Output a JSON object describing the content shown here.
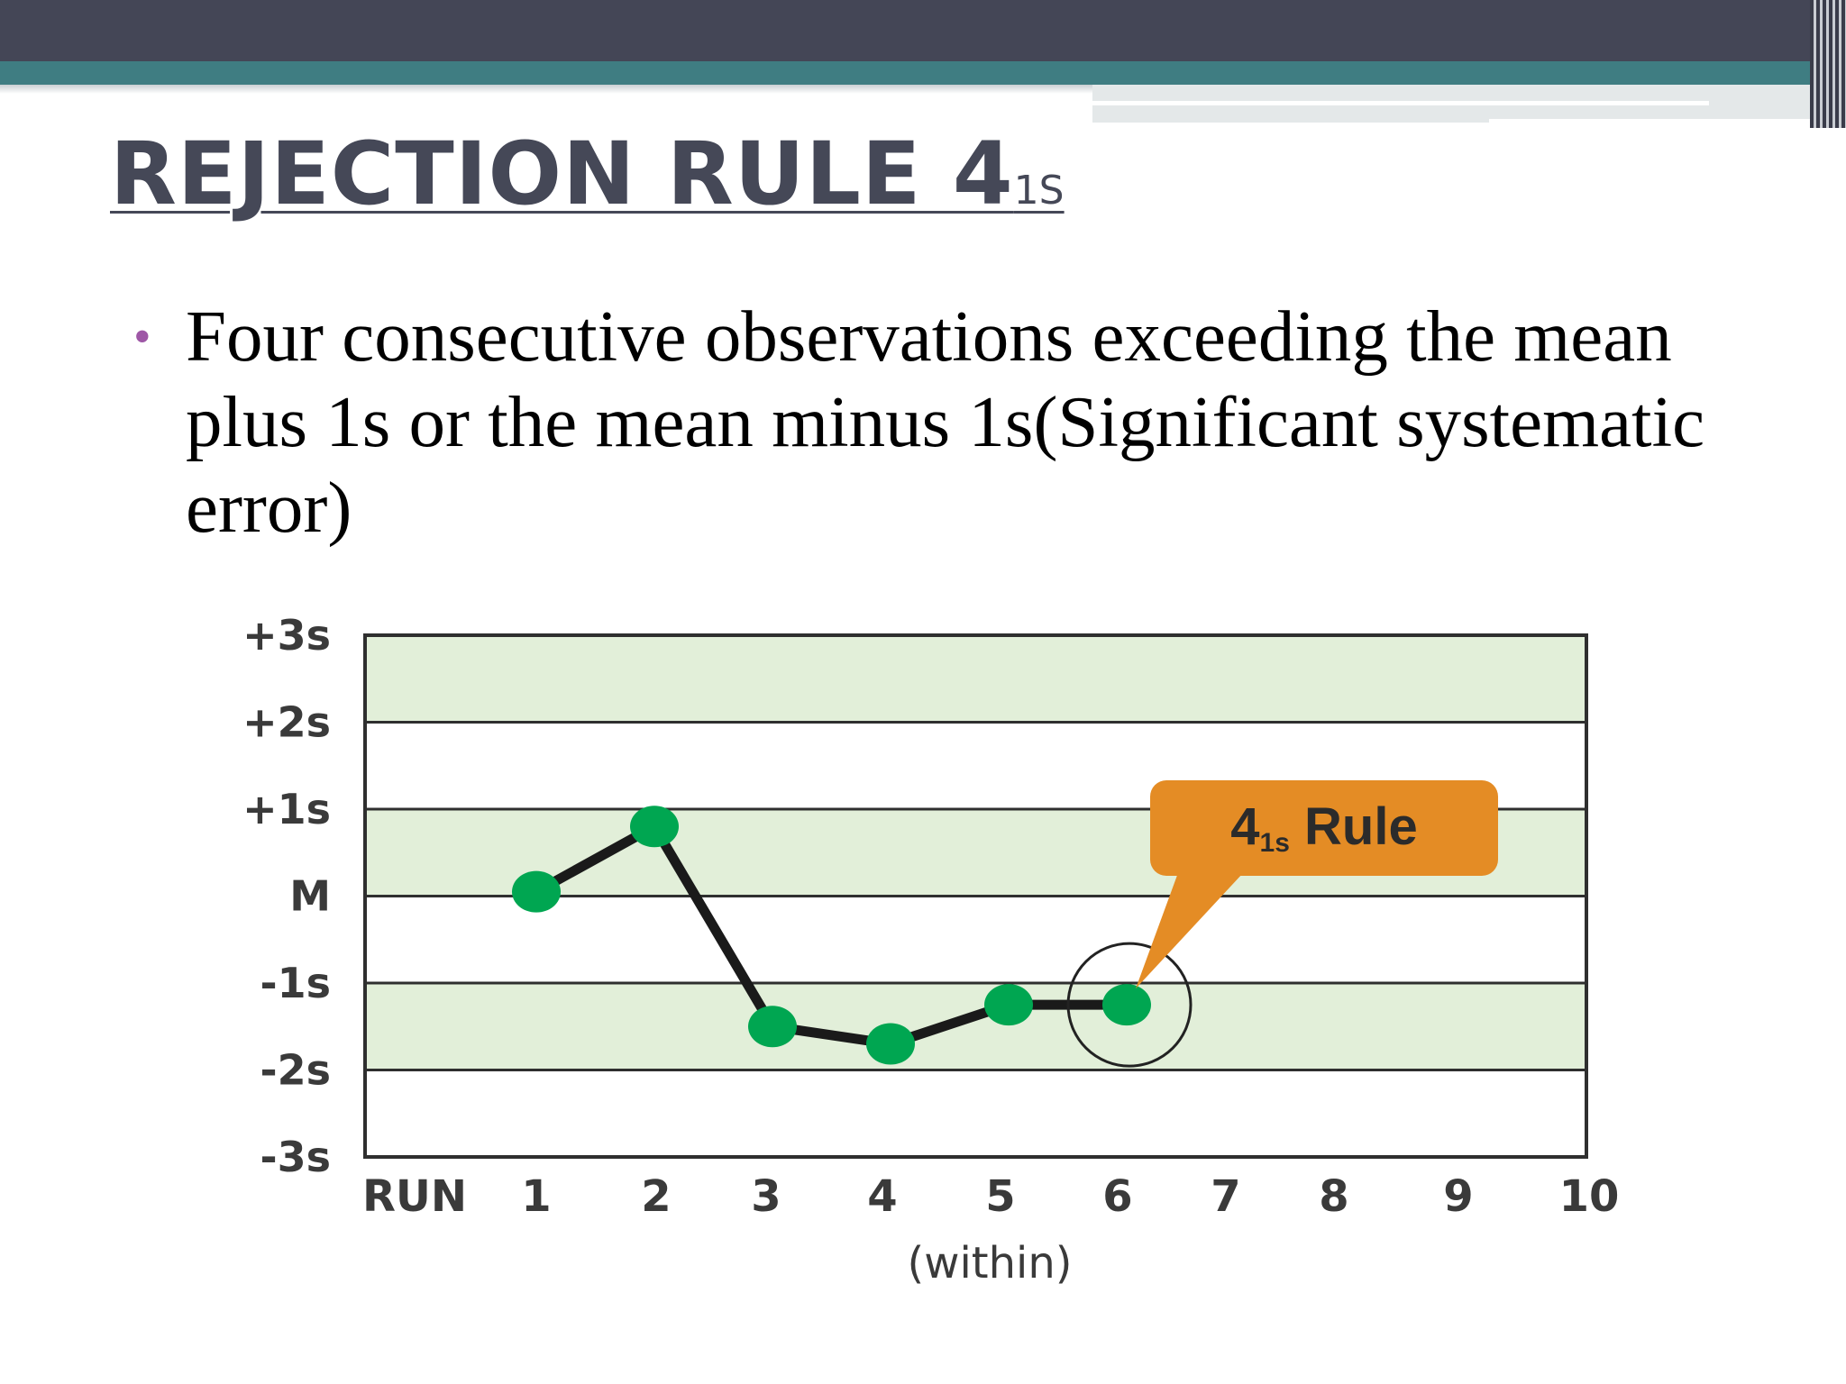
{
  "slide": {
    "title": "REJECTION RULE 4",
    "title_subscript": "1S",
    "bullet": "Four consecutive observations exceeding the mean plus 1s or the mean minus 1s(Significant systematic error)"
  },
  "colors": {
    "header_dark": "#444656",
    "header_teal": "#3f7d82",
    "title": "#454857",
    "bullet_marker": "#9e57a6",
    "band_fill": "#e2efd9",
    "point": "#00a651",
    "line": "#1a1a1a",
    "callout": "#e48c25"
  },
  "chart_data": {
    "type": "line",
    "y_categories": [
      "-3s",
      "-2s",
      "-1s",
      "M",
      "+1s",
      "+2s",
      "+3s"
    ],
    "ylim": [
      -3,
      3
    ],
    "x_prefix": "RUN",
    "x_ticks": [
      "1",
      "2",
      "3",
      "4",
      "5",
      "6",
      "7",
      "8",
      "9",
      "10"
    ],
    "xlabel": "(within)",
    "series": [
      {
        "x": [
          1,
          2,
          3,
          4,
          5,
          6
        ],
        "values": [
          0.05,
          0.8,
          -1.5,
          -1.7,
          -1.25,
          -1.25
        ]
      }
    ],
    "shaded_bands": [
      [
        -2,
        -1
      ],
      [
        0,
        1
      ],
      [
        2,
        3
      ]
    ],
    "highlight_x": 6,
    "annotation": {
      "text": "4",
      "subscript": "1s",
      "suffix": " Rule",
      "points_to_x": 6
    },
    "grid": true
  }
}
